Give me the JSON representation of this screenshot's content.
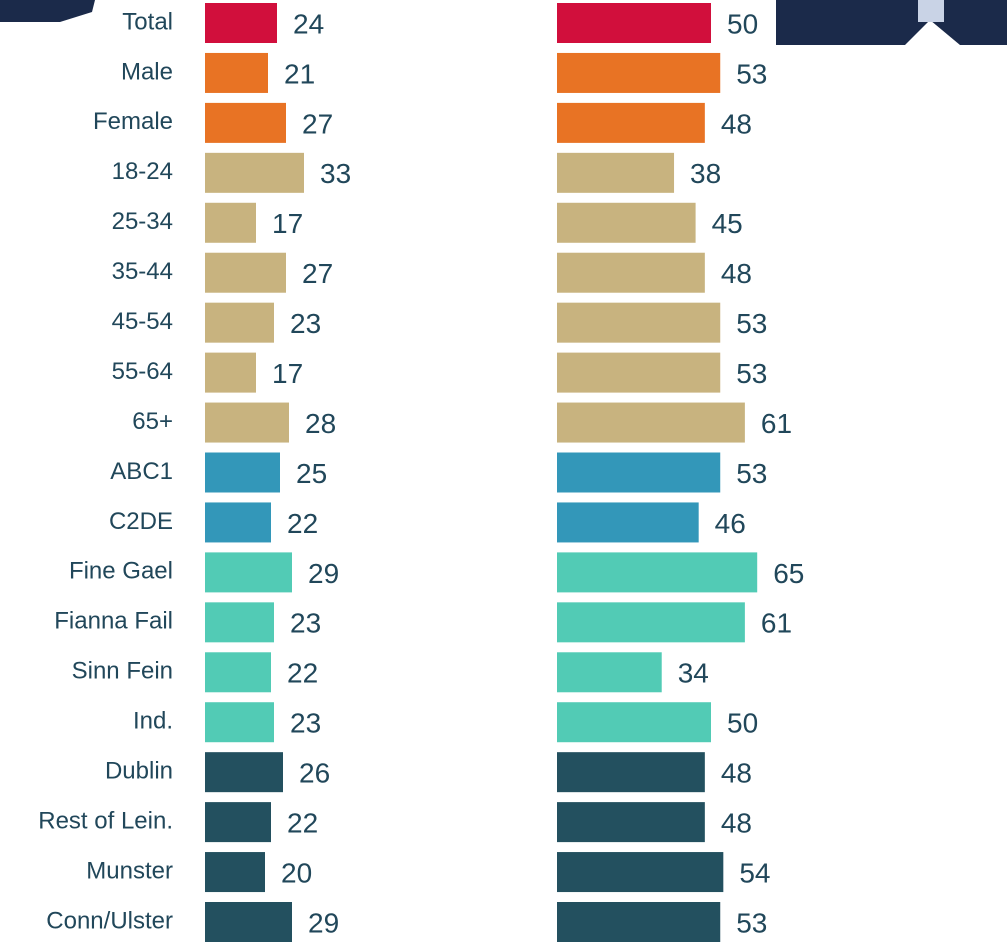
{
  "chart_data": {
    "type": "bar",
    "orientation": "horizontal",
    "categories": [
      "Total",
      "Male",
      "Female",
      "18-24",
      "25-34",
      "35-44",
      "45-54",
      "55-64",
      "65+",
      "ABC1",
      "C2DE",
      "Fine Gael",
      "Fianna Fail",
      "Sinn Fein",
      "Ind.",
      "Dublin",
      "Rest of Lein.",
      "Munster",
      "Conn/Ulster"
    ],
    "colors": [
      "#d10f3c",
      "#e87324",
      "#e87324",
      "#c8b37f",
      "#c8b37f",
      "#c8b37f",
      "#c8b37f",
      "#c8b37f",
      "#c8b37f",
      "#3397b9",
      "#3397b9",
      "#52cbb5",
      "#52cbb5",
      "#52cbb5",
      "#52cbb5",
      "#23505f",
      "#23505f",
      "#23505f",
      "#23505f"
    ],
    "series": [
      {
        "values": [
          24,
          21,
          27,
          33,
          17,
          27,
          23,
          17,
          28,
          25,
          22,
          29,
          23,
          22,
          23,
          26,
          22,
          20,
          29
        ]
      },
      {
        "values": [
          50,
          53,
          48,
          38,
          45,
          48,
          53,
          53,
          61,
          53,
          46,
          65,
          61,
          34,
          50,
          48,
          48,
          54,
          53
        ]
      }
    ]
  }
}
